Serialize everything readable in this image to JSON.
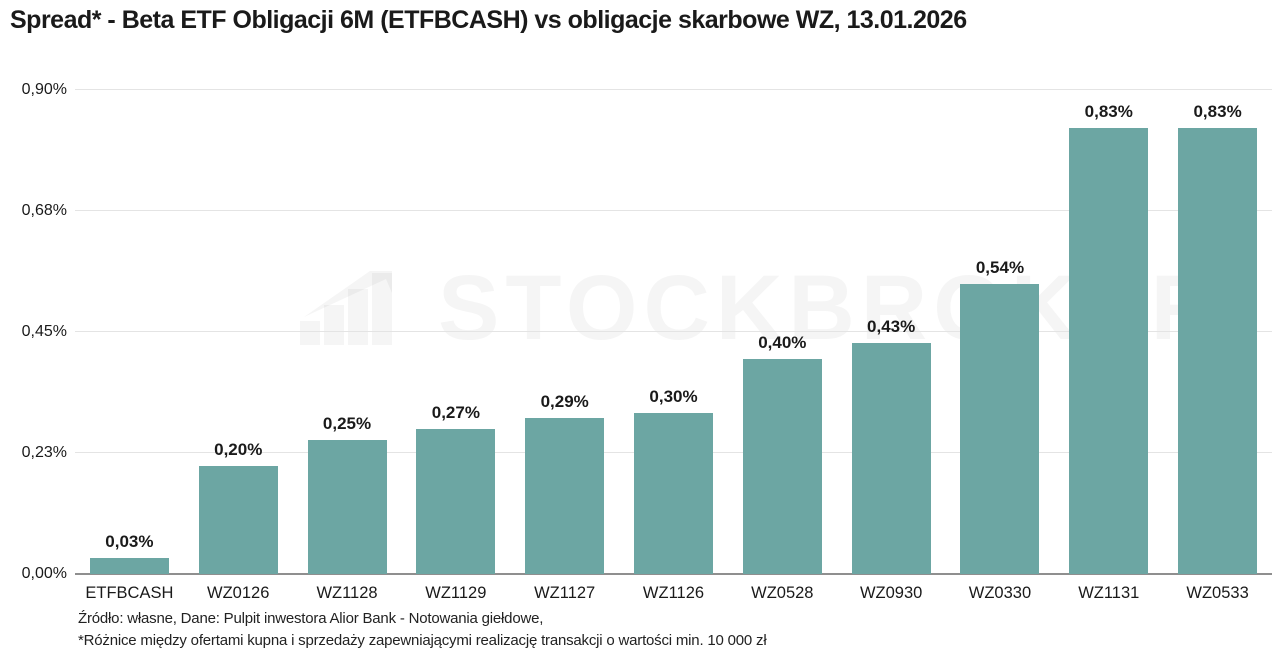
{
  "title": "Spread* - Beta ETF Obligacji 6M (ETFBCASH) vs obligacje skarbowe WZ, 13.01.2026",
  "watermark": {
    "text": "STOCKBROKER",
    "icon": "rising-bar-chart-arrow-icon"
  },
  "footer": {
    "line1": "Źródło: własne, Dane: Pulpit inwestora Alior Bank - Notowania giełdowe,",
    "line2": "*Różnice między ofertami kupna i sprzedaży zapewniającymi realizację transakcji o wartości min. 10 000 zł"
  },
  "chart_data": {
    "type": "bar",
    "title": "Spread* - Beta ETF Obligacji 6M (ETFBCASH) vs obligacje skarbowe WZ, 13.01.2026",
    "categories": [
      "ETFBCASH",
      "WZ0126",
      "WZ1128",
      "WZ1129",
      "WZ1127",
      "WZ1126",
      "WZ0528",
      "WZ0930",
      "WZ0330",
      "WZ1131",
      "WZ0533"
    ],
    "values": [
      0.03,
      0.2,
      0.25,
      0.27,
      0.29,
      0.3,
      0.4,
      0.43,
      0.54,
      0.83,
      0.83
    ],
    "value_labels": [
      "0,03%",
      "0,20%",
      "0,25%",
      "0,27%",
      "0,29%",
      "0,30%",
      "0,40%",
      "0,43%",
      "0,54%",
      "0,83%",
      "0,83%"
    ],
    "xlabel": "",
    "ylabel": "",
    "ylim": [
      0,
      0.9
    ],
    "yticks": [
      {
        "label": "0,00%",
        "value": 0.0
      },
      {
        "label": "0,23%",
        "value": 0.225
      },
      {
        "label": "0,45%",
        "value": 0.45
      },
      {
        "label": "0,68%",
        "value": 0.675
      },
      {
        "label": "0,90%",
        "value": 0.9
      }
    ],
    "grid": true,
    "legend": false,
    "bar_color": "#6ca6a3",
    "gridline_color": "#e4e4e4",
    "axis_color": "#8f8f8f",
    "label_color": "#1a1a1a"
  }
}
